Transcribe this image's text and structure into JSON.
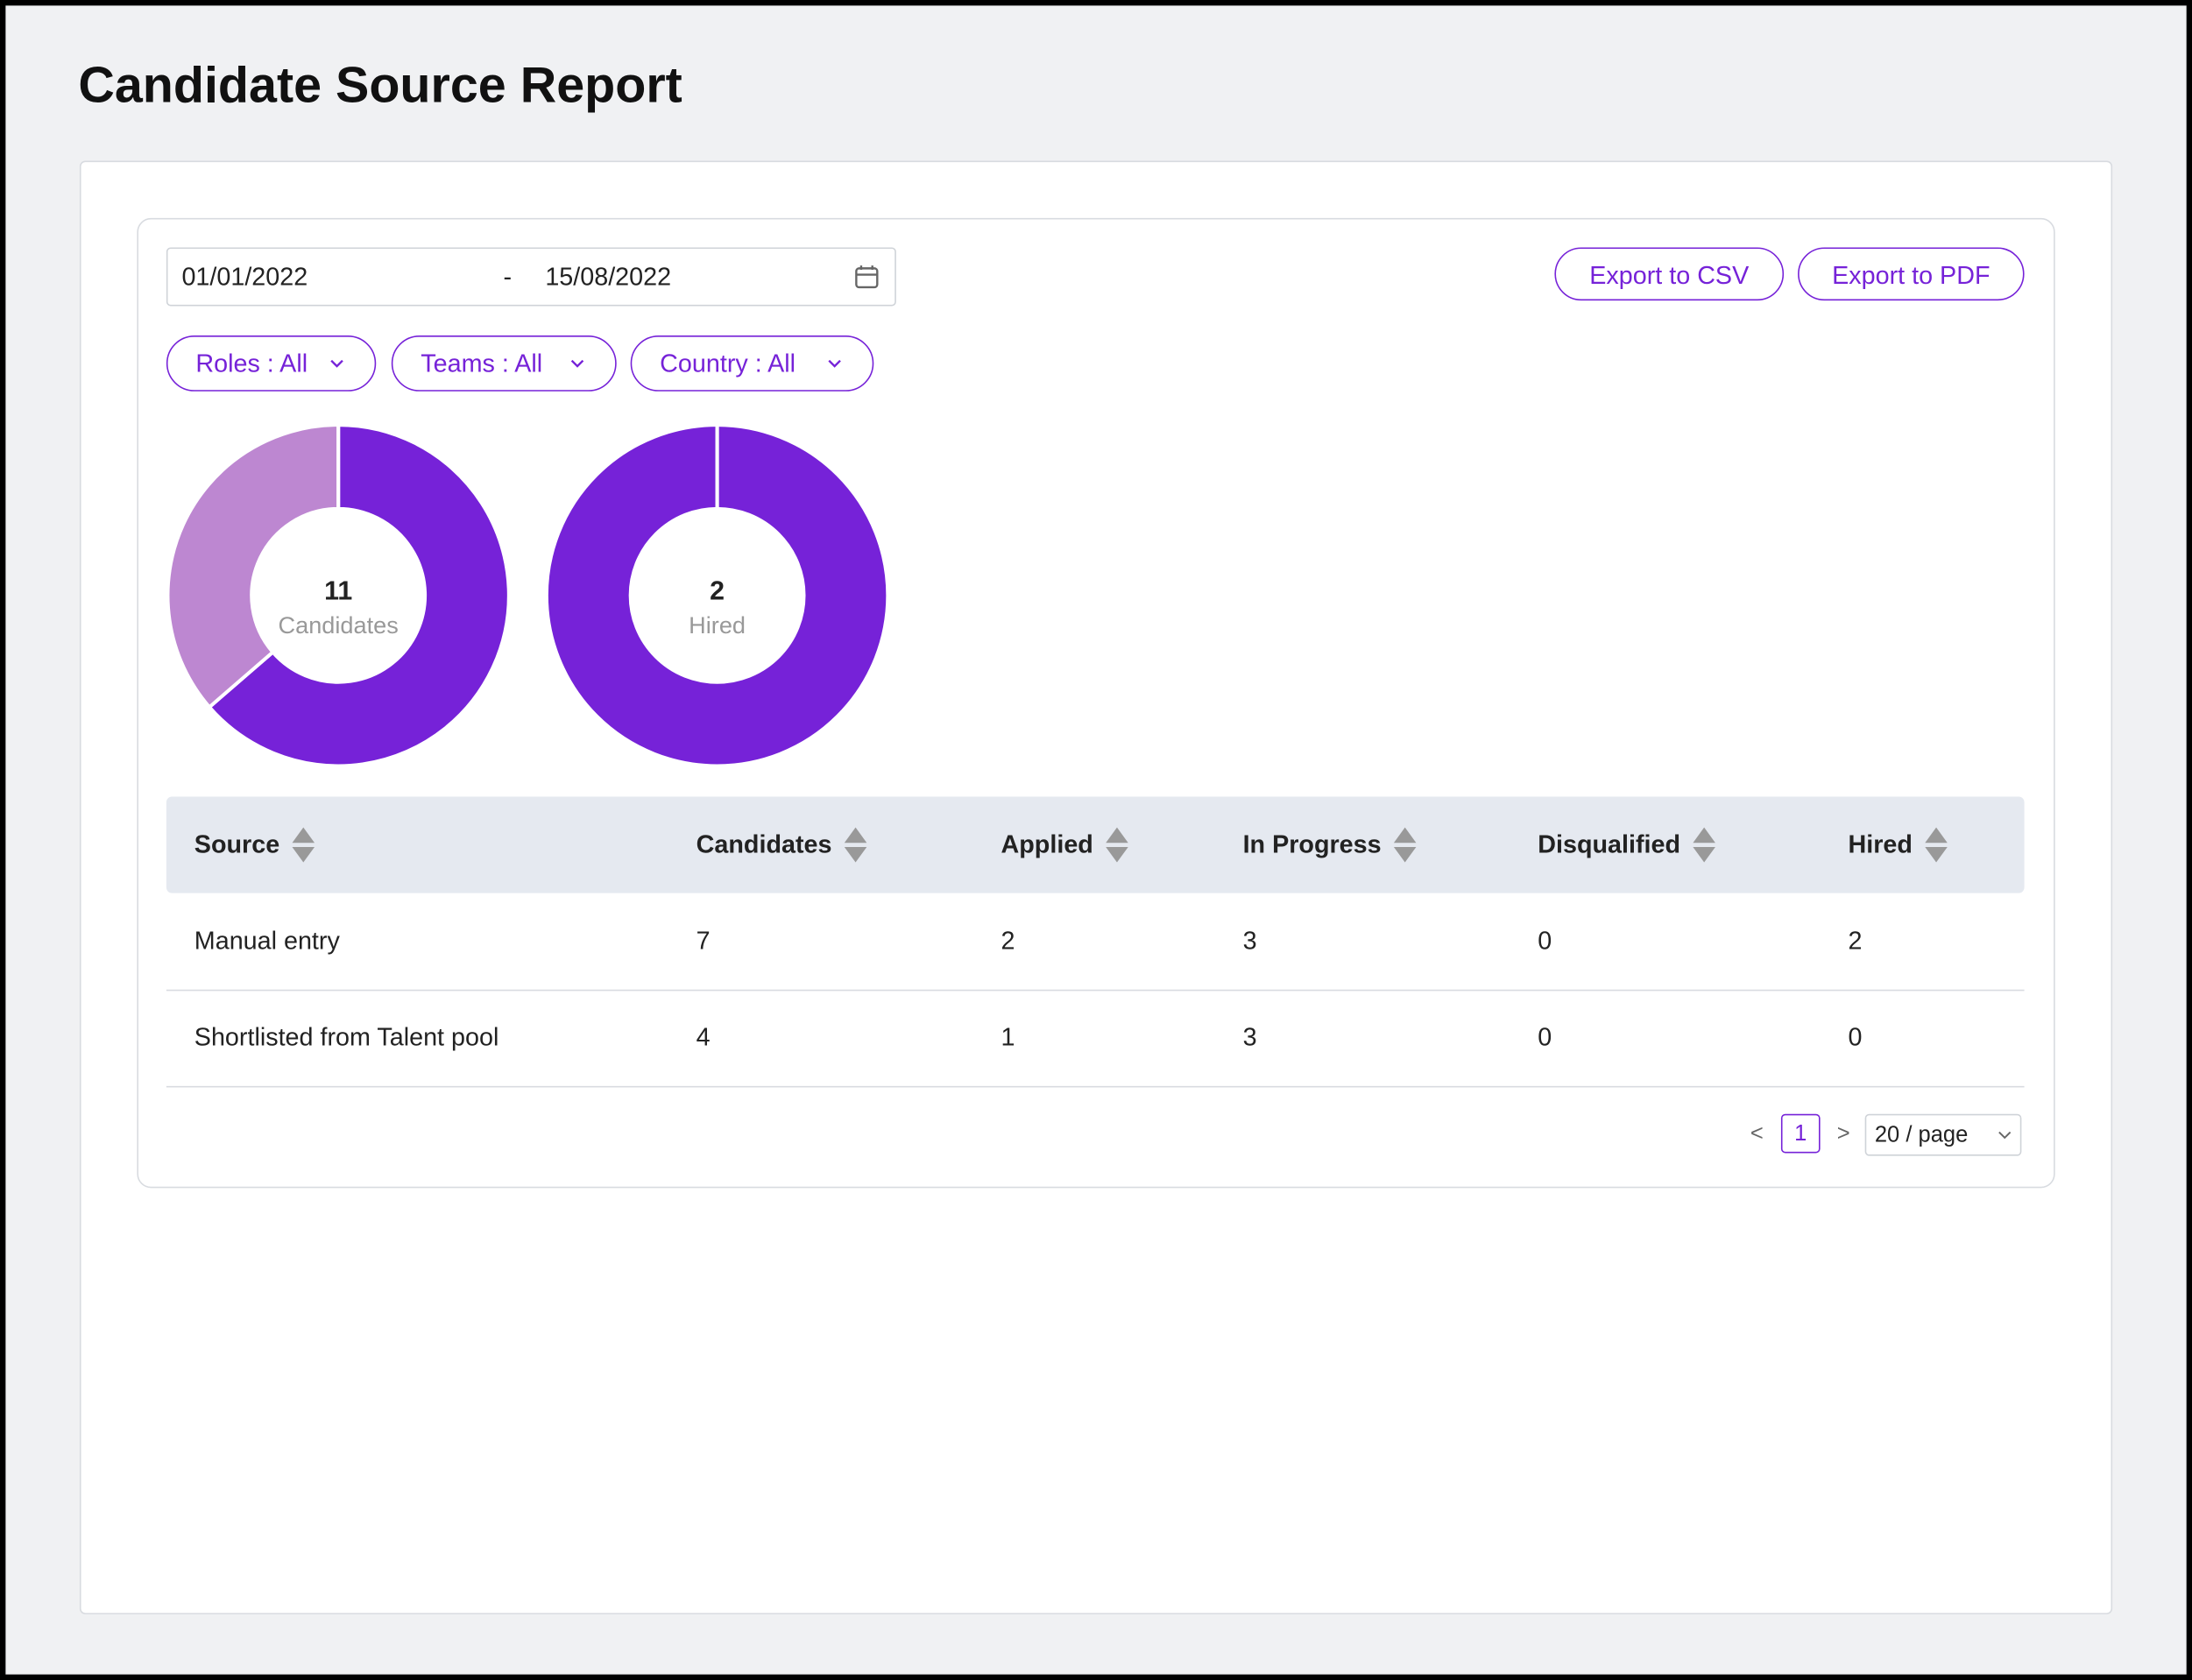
{
  "header": {
    "title": "Candidate Source Report"
  },
  "filters": {
    "date_start": "01/01/2022",
    "date_separator": "-",
    "date_end": "15/08/2022",
    "pills": [
      "Roles : All",
      "Teams : All",
      "Country : All"
    ]
  },
  "actions": [
    "Export to CSV",
    "Export to PDF"
  ],
  "chart_data": [
    {
      "type": "donut",
      "center_value": 11,
      "center_label": "Candidates",
      "values": [
        7,
        4
      ],
      "colors": [
        "#7622d8",
        "#bd87d1"
      ]
    },
    {
      "type": "donut",
      "center_value": 2,
      "center_label": "Hired",
      "values": [
        2,
        0
      ],
      "colors": [
        "#7622d8",
        "#bd87d1"
      ]
    }
  ],
  "table": {
    "columns": [
      "Source",
      "Candidates",
      "Applied",
      "In Progress",
      "Disqualified",
      "Hired"
    ],
    "rows": [
      [
        "Manual entry",
        7,
        2,
        3,
        0,
        2
      ],
      [
        "Shortlisted from Talent pool",
        4,
        1,
        3,
        0,
        0
      ]
    ]
  },
  "pagination": {
    "prev": "<",
    "current": 1,
    "next": ">",
    "page_size": "20 / page"
  }
}
